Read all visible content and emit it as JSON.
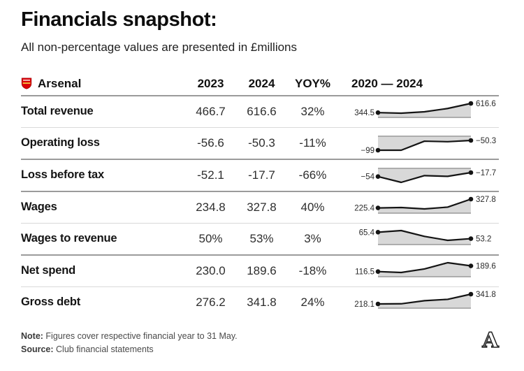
{
  "title": "Financials snapshot:",
  "subtitle": "All non-percentage values are presented in £millions",
  "table": {
    "club": "Arsenal",
    "club_icon": "arsenal-crest-icon",
    "columns": [
      "2023",
      "2024",
      "YOY%",
      "2020 — 2024"
    ],
    "rows": [
      {
        "label": "Total revenue",
        "y2023": "466.7",
        "y2024": "616.6",
        "yoy": "32%",
        "divider_after": "light"
      },
      {
        "label": "Operating loss",
        "y2023": "-56.6",
        "y2024": "-50.3",
        "yoy": "-11%",
        "divider_after": "dark"
      },
      {
        "label": "Loss before tax",
        "y2023": "-52.1",
        "y2024": "-17.7",
        "yoy": "-66%",
        "divider_after": "dark"
      },
      {
        "label": "Wages",
        "y2023": "234.8",
        "y2024": "327.8",
        "yoy": "40%",
        "divider_after": "light"
      },
      {
        "label": "Wages to revenue",
        "y2023": "50%",
        "y2024": "53%",
        "yoy": "3%",
        "divider_after": "dark"
      },
      {
        "label": "Net spend",
        "y2023": "230.0",
        "y2024": "189.6",
        "yoy": "-18%",
        "divider_after": "light"
      },
      {
        "label": "Gross debt",
        "y2023": "276.2",
        "y2024": "341.8",
        "yoy": "24%",
        "divider_after": "none"
      }
    ]
  },
  "chart_data": {
    "type": "line",
    "subtype": "sparklines",
    "x": [
      2020,
      2021,
      2022,
      2023,
      2024
    ],
    "xlabel": "",
    "ylabel": "£millions (except Wages to revenue, %)",
    "grid": false,
    "legend": "none",
    "series": [
      {
        "name": "Total revenue",
        "values": [
          344.5,
          327.6,
          369.1,
          466.7,
          616.6
        ],
        "start_label": "344.5",
        "end_label": "616.6",
        "fill": "below"
      },
      {
        "name": "Operating loss",
        "values": [
          -99,
          -99,
          -54,
          -56.6,
          -50.3
        ],
        "start_label": "−99",
        "end_label": "−50.3",
        "fill": "above"
      },
      {
        "name": "Loss before tax",
        "values": [
          -54,
          -107,
          -45.5,
          -52.1,
          -17.7
        ],
        "start_label": "−54",
        "end_label": "−17.7",
        "fill": "above"
      },
      {
        "name": "Wages",
        "values": [
          225.4,
          230,
          214,
          234.8,
          327.8
        ],
        "start_label": "225.4",
        "end_label": "327.8",
        "fill": "below"
      },
      {
        "name": "Wages to revenue",
        "values": [
          65.4,
          68.5,
          57.5,
          50,
          53.2
        ],
        "start_label": "65.4",
        "end_label": "53.2",
        "fill": "below"
      },
      {
        "name": "Net spend",
        "values": [
          116.5,
          105,
          150,
          230,
          189.6
        ],
        "start_label": "116.5",
        "end_label": "189.6",
        "fill": "below"
      },
      {
        "name": "Gross debt",
        "values": [
          218.1,
          220,
          259,
          276.2,
          341.8
        ],
        "start_label": "218.1",
        "end_label": "341.8",
        "fill": "below"
      }
    ],
    "style": {
      "line_color": "#141414",
      "area_fill": "#d8d8d8",
      "baseline_color": "#adadad",
      "dot_color": "#141414",
      "label_color": "#2b2b2b"
    }
  },
  "footer": {
    "note_label": "Note:",
    "note_text": " Figures cover respective financial year to 31 May.",
    "source_label": "Source:",
    "source_text": " Club financial statements"
  },
  "branding": {
    "logo_letter": "A"
  },
  "colors": {
    "arsenal_red": "#DB0008",
    "crest_gold": "#f0b43c",
    "dark_divider": "#9b9b9b",
    "light_divider": "#d9d9d9",
    "text_primary": "#141414",
    "text_secondary": "#4a4a4a"
  }
}
